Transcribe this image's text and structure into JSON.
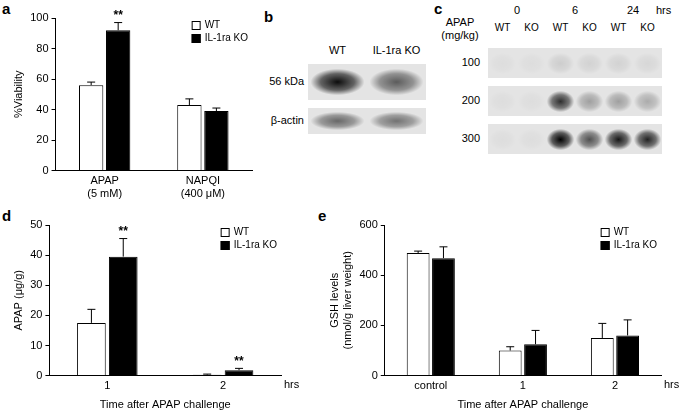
{
  "chart_data": [
    {
      "panel": "a",
      "type": "bar",
      "categories": [
        [
          "APAP",
          "(5 mM)"
        ],
        [
          "NAPQI",
          "(400 μM)"
        ]
      ],
      "ylabel": "%Viability",
      "ylim": [
        0,
        100
      ],
      "yticks": [
        0,
        20,
        40,
        60,
        80,
        100
      ],
      "grid": false,
      "legend": "upper right",
      "series": [
        {
          "name": "WT",
          "color": "#ffffff",
          "values": [
            56,
            43
          ],
          "errors": [
            2,
            4
          ]
        },
        {
          "name": "IL-1ra KO",
          "color": "#000000",
          "values": [
            92,
            39
          ],
          "errors": [
            5,
            2
          ],
          "significance": [
            "**",
            null
          ]
        }
      ]
    },
    {
      "panel": "d",
      "type": "bar",
      "categories": [
        "1",
        "2"
      ],
      "xlabel": "Time after APAP challenge",
      "xlabel_unit": "hrs",
      "ylabel": "APAP (μg/g)",
      "ylim": [
        0,
        50
      ],
      "yticks": [
        0,
        10,
        20,
        30,
        40,
        50
      ],
      "grid": false,
      "legend": "upper right",
      "series": [
        {
          "name": "WT",
          "color": "#ffffff",
          "values": [
            17.5,
            0.3
          ],
          "errors": [
            4.5,
            0.2
          ]
        },
        {
          "name": "IL-1ra KO",
          "color": "#000000",
          "values": [
            39.5,
            1.8
          ],
          "errors": [
            6,
            0.6
          ],
          "significance": [
            "**",
            "**"
          ]
        }
      ]
    },
    {
      "panel": "e",
      "type": "bar",
      "categories": [
        "control",
        "1",
        "2"
      ],
      "xlabel": "Time after APAP challenge",
      "xlabel_unit": "hrs",
      "ylabel": [
        "GSH levels",
        "(nmol/g liver weight)"
      ],
      "ylim": [
        0,
        600
      ],
      "yticks": [
        0,
        200,
        400,
        600
      ],
      "grid": false,
      "legend": "upper right",
      "series": [
        {
          "name": "WT",
          "color": "#ffffff",
          "values": [
            488,
            100,
            150
          ],
          "errors": [
            8,
            15,
            58
          ]
        },
        {
          "name": "IL-1ra KO",
          "color": "#000000",
          "values": [
            468,
            125,
            160
          ],
          "errors": [
            45,
            55,
            62
          ]
        }
      ]
    }
  ],
  "blots": [
    {
      "panel": "b",
      "columns": [
        "WT",
        "IL-1ra KO"
      ],
      "rows": [
        {
          "label": "56 kDa",
          "bands": [
            0.95,
            0.6
          ]
        },
        {
          "label": "β-actin",
          "bands": [
            0.55,
            0.5
          ]
        }
      ]
    },
    {
      "panel": "c",
      "row_header": [
        "APAP",
        "(mg/kg)"
      ],
      "times": [
        "0",
        "6",
        "24"
      ],
      "time_unit": "hrs",
      "groups": [
        "WT",
        "KO"
      ],
      "rows": [
        {
          "label": "100",
          "bands": [
            0.03,
            0.03,
            0.1,
            0.08,
            0.08,
            0.06
          ]
        },
        {
          "label": "200",
          "bands": [
            0.03,
            0.03,
            0.8,
            0.3,
            0.3,
            0.25
          ]
        },
        {
          "label": "300",
          "bands": [
            0.03,
            0.03,
            1.0,
            0.65,
            0.9,
            0.85
          ]
        }
      ]
    }
  ]
}
